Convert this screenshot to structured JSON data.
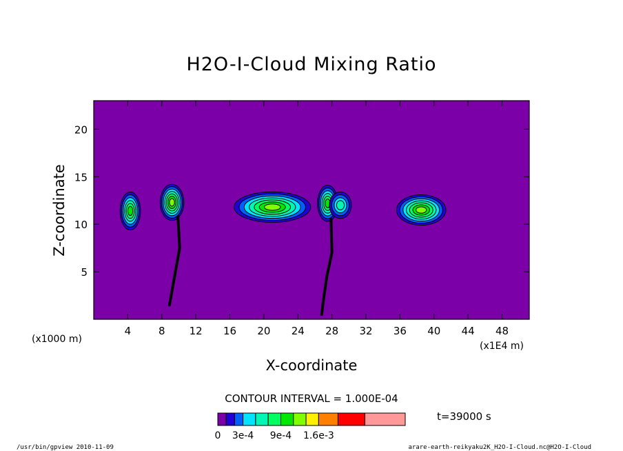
{
  "chart_data": {
    "type": "heatmap",
    "title": "H2O-I-Cloud Mixing Ratio",
    "xlabel": "X-coordinate",
    "ylabel": "Z-coordinate",
    "x_units_left": "(x1000 m)",
    "x_units_right": "(x1E4 m)",
    "xlim": [
      0,
      51.2
    ],
    "ylim": [
      0,
      23
    ],
    "x_ticks": [
      4,
      8,
      12,
      16,
      20,
      24,
      28,
      32,
      36,
      40,
      44,
      48
    ],
    "x_tick_labels": [
      "4",
      "8",
      "12",
      "16",
      "20",
      "24",
      "28",
      "32",
      "36",
      "40",
      "44",
      "48"
    ],
    "y_ticks": [
      5,
      10,
      15,
      20
    ],
    "y_tick_labels": [
      "5",
      "10",
      "15",
      "20"
    ],
    "contour_interval": "CONTOUR INTERVAL = 1.000E-04",
    "time_label": "t=39000 s",
    "colorbar": {
      "levels": [
        0,
        0.0001,
        0.0002,
        0.0003,
        0.0004,
        0.0006,
        0.0007,
        0.0009,
        0.0011,
        0.0013,
        0.0016,
        0.002,
        0.0025
      ],
      "colors": [
        "#7b00a8",
        "#2400d8",
        "#0060ff",
        "#00e4ff",
        "#00f8b4",
        "#00ff60",
        "#00e800",
        "#80ff00",
        "#fff000",
        "#ff8000",
        "#ff0000",
        "#ff9898"
      ],
      "tick_labels": [
        "0",
        "3e-4",
        "9e-4",
        "1.6e-3"
      ]
    },
    "clouds": [
      {
        "x": 4.3,
        "z": 11.4,
        "peak": 0.0008
      },
      {
        "x": 9.2,
        "z": 12.3,
        "peak": 0.0009
      },
      {
        "x": 21.0,
        "z": 11.8,
        "peak": 0.001
      },
      {
        "x": 27.5,
        "z": 12.2,
        "peak": 0.0007
      },
      {
        "x": 29.0,
        "z": 12.0,
        "peak": 0.0004
      },
      {
        "x": 38.5,
        "z": 11.5,
        "peak": 0.0009
      }
    ]
  },
  "footer": {
    "left": "/usr/bin/gpview   2010-11-09",
    "right": "arare-earth-reikyaku2K_H2O-I-Cloud.nc@H2O-I-Cloud"
  }
}
